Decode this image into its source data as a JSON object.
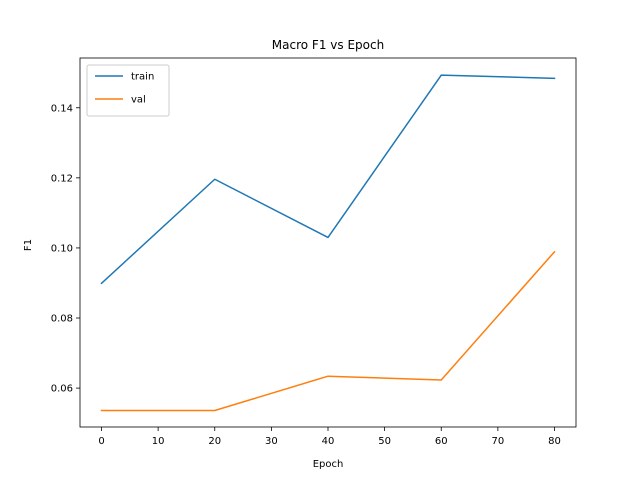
{
  "chart_data": {
    "type": "line",
    "title": "Macro F1 vs Epoch",
    "xlabel": "Epoch",
    "ylabel": "F1",
    "xlim": [
      -3.8,
      83.8
    ],
    "ylim": [
      0.0489,
      0.1542
    ],
    "xticks": [
      0,
      10,
      20,
      30,
      40,
      50,
      60,
      70,
      80
    ],
    "yticks": [
      0.06,
      0.08,
      0.1,
      0.12,
      0.14
    ],
    "ytick_labels": [
      "0.06",
      "0.08",
      "0.10",
      "0.12",
      "0.14"
    ],
    "grid": false,
    "legend_placement": "top-left",
    "series": [
      {
        "name": "train",
        "color": "#1f77b4",
        "x": [
          0,
          20,
          40,
          60,
          80
        ],
        "y": [
          0.0899,
          0.1196,
          0.103,
          0.1493,
          0.1484
        ]
      },
      {
        "name": "val",
        "color": "#ff7f0e",
        "x": [
          0,
          20,
          40,
          60,
          80
        ],
        "y": [
          0.0536,
          0.0536,
          0.0634,
          0.0623,
          0.0989
        ]
      }
    ]
  }
}
